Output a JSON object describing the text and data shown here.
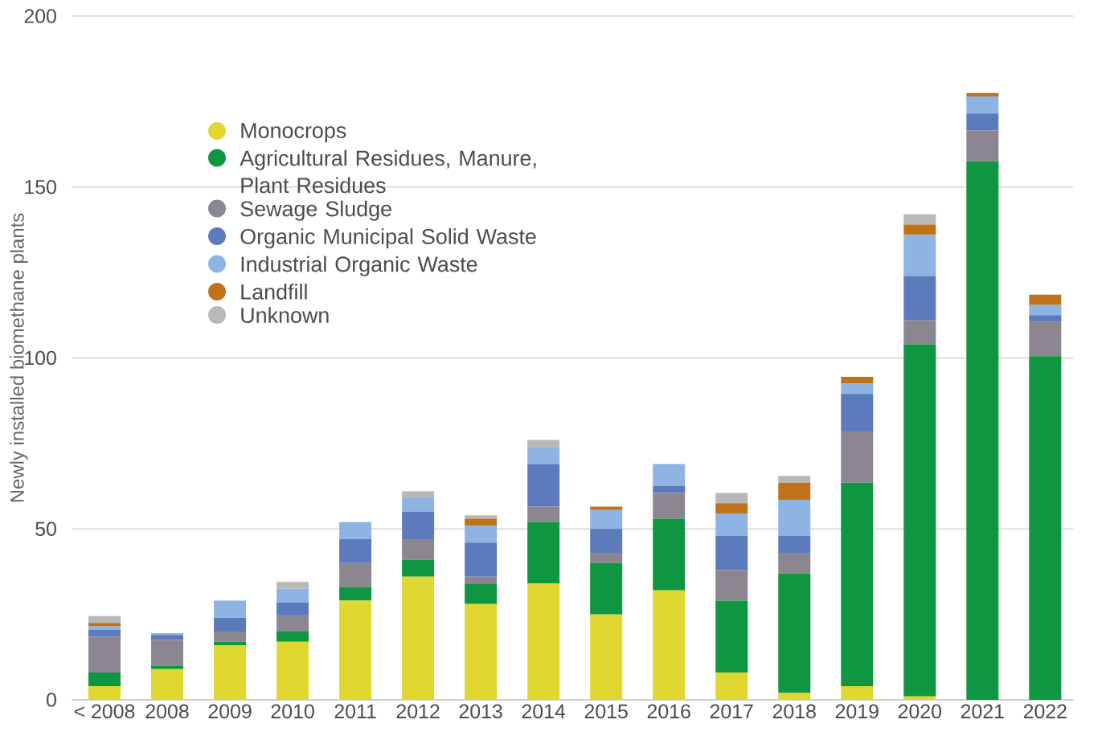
{
  "chart_data": {
    "type": "bar",
    "stacked": true,
    "ylabel": "Newly installed biomethane plants",
    "categories": [
      "< 2008",
      "2008",
      "2009",
      "2010",
      "2011",
      "2012",
      "2013",
      "2014",
      "2015",
      "2016",
      "2017",
      "2018",
      "2019",
      "2020",
      "2021",
      "2022"
    ],
    "series": [
      {
        "name": "Monocrops",
        "color": "#e0d731",
        "values": [
          4,
          9,
          16,
          17,
          29,
          36,
          28,
          34,
          25,
          32,
          8,
          2,
          4,
          1,
          0,
          0
        ]
      },
      {
        "name": "Agricultural Residues, Manure, Plant Residues",
        "color": "#0f9640",
        "values": [
          4,
          1,
          1,
          3,
          4,
          5,
          6,
          18,
          15,
          21,
          21,
          35,
          59.5,
          103,
          157.5,
          100.5
        ]
      },
      {
        "name": "Sewage Sludge",
        "color": "#8c8690",
        "values": [
          10.5,
          7.5,
          3,
          4.5,
          7,
          6,
          2,
          4.5,
          3,
          7.5,
          9,
          6,
          15,
          7,
          9,
          10
        ]
      },
      {
        "name": "Organic Municipal Solid Waste",
        "color": "#5b7bbd",
        "values": [
          2,
          1.5,
          4,
          4,
          7,
          8,
          10,
          12.5,
          7,
          2,
          10,
          5,
          11,
          13,
          5,
          2
        ]
      },
      {
        "name": "Industrial Organic Waste",
        "color": "#8db4e2",
        "values": [
          1,
          0.5,
          5,
          4,
          5,
          4,
          5,
          5,
          5.5,
          6.5,
          6.5,
          10.5,
          3,
          12,
          5,
          3
        ]
      },
      {
        "name": "Landfill",
        "color": "#c0721a",
        "values": [
          1,
          0,
          0,
          0,
          0,
          0,
          2,
          0,
          1,
          0,
          3,
          5,
          2,
          3,
          1,
          3
        ]
      },
      {
        "name": "Unknown",
        "color": "#b8b8b8",
        "values": [
          2,
          0,
          0,
          2,
          0,
          2,
          1,
          2,
          0,
          0,
          3,
          2,
          0,
          3,
          0,
          0
        ]
      }
    ],
    "ylim": [
      0,
      200
    ],
    "yticks": [
      0,
      50,
      100,
      150,
      200
    ],
    "grid": "y",
    "legend": "top left"
  }
}
